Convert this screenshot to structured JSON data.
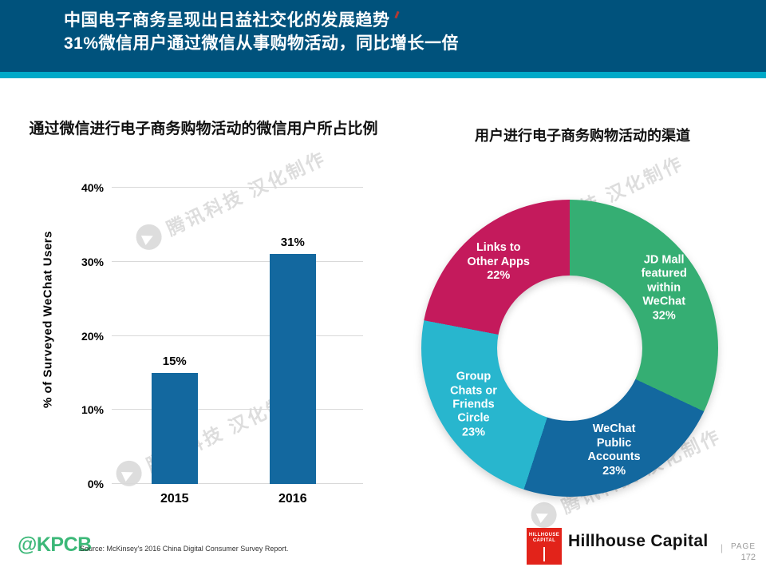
{
  "header": {
    "title_line1": "中国电子商务呈现出日益社交化的发展趋势",
    "title_line2": "31%微信用户通过微信从事购物活动，同比增长一倍"
  },
  "watermark": {
    "text": "腾讯科技 汉化制作",
    "badge_glyph": "▶"
  },
  "chart_data": [
    {
      "type": "bar",
      "title": "通过微信进行电子商务购物活动的微信用户所占比例",
      "categories": [
        "2015",
        "2016"
      ],
      "values": [
        15,
        31
      ],
      "value_labels": [
        "15%",
        "31%"
      ],
      "xlabel": "",
      "ylabel": "% of Surveyed WeChat Users",
      "ylim": [
        0,
        40
      ],
      "yticks": [
        {
          "value": 0,
          "label": "0%"
        },
        {
          "value": 10,
          "label": "10%"
        },
        {
          "value": 20,
          "label": "20%"
        },
        {
          "value": 30,
          "label": "30%"
        },
        {
          "value": 40,
          "label": "40%"
        }
      ],
      "grid": true,
      "bar_color": "#13689F"
    },
    {
      "type": "pie",
      "donut": true,
      "title": "用户进行电子商务购物活动的渠道",
      "start_angle_deg": 0,
      "direction": "clockwise",
      "segments": [
        {
          "label": "JD Mall featured within WeChat",
          "lines": [
            "JD Mall",
            "featured",
            "within",
            "WeChat"
          ],
          "value": 32,
          "pct_label": "32%",
          "color": "#35AE73"
        },
        {
          "label": "WeChat Public Accounts",
          "lines": [
            "WeChat",
            "Public",
            "Accounts"
          ],
          "value": 23,
          "pct_label": "23%",
          "color": "#13689F"
        },
        {
          "label": "Group Chats or Friends Circle",
          "lines": [
            "Group",
            "Chats or",
            "Friends",
            "Circle"
          ],
          "value": 23,
          "pct_label": "23%",
          "color": "#28B6CE"
        },
        {
          "label": "Links to Other Apps",
          "lines": [
            "Links to",
            "Other Apps"
          ],
          "value": 22,
          "pct_label": "22%",
          "color": "#C41A5C"
        }
      ]
    }
  ],
  "footer": {
    "kpcb_logo": "@KPCB",
    "source": "Source: McKinsey's 2016 China Digital Consumer Survey Report.",
    "hillhouse_logo_line1": "HILLHOUSE",
    "hillhouse_logo_line2": "CAPITAL",
    "hillhouse_name": "Hillhouse Capital",
    "separator": "|",
    "page_label": "PAGE",
    "page_number": "172"
  },
  "colors": {
    "header_bg": "#00527C",
    "header_strip": "#00A9C8",
    "bar_blue": "#13689F",
    "donut_green": "#35AE73",
    "donut_blue": "#13689F",
    "donut_cyan": "#28B6CE",
    "donut_crimson": "#C41A5C",
    "kpcb_green": "#3CB878",
    "hillhouse_red": "#E2231A"
  }
}
